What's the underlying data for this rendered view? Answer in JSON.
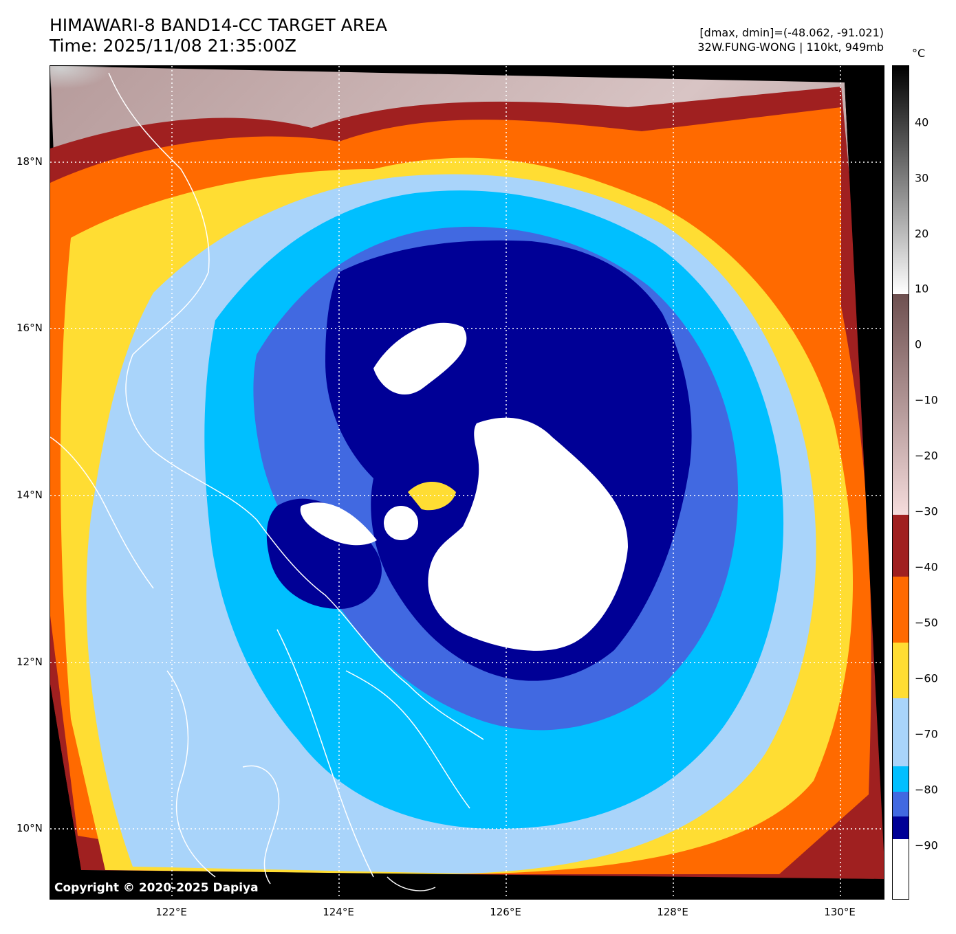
{
  "header": {
    "title": "HIMAWARI-8 BAND14-CC TARGET AREA",
    "time": "Time: 2025/11/08 21:35:00Z",
    "range": "[dmax, dmin]=(-48.062, -91.021)",
    "storm": "32W.FUNG-WONG | 110kt, 949mb"
  },
  "map": {
    "copyright": "Copyright © 2020-2025 Dapiya",
    "lon_ticks": [
      "122°E",
      "124°E",
      "126°E",
      "128°E",
      "130°E"
    ],
    "lat_ticks": [
      "18°N",
      "16°N",
      "14°N",
      "12°N",
      "10°N"
    ],
    "gridlines": "dotted white"
  },
  "colorbar": {
    "unit": "°C",
    "labels": [
      "40",
      "30",
      "20",
      "10",
      "0",
      "−10",
      "−20",
      "−30",
      "−40",
      "−50",
      "−60",
      "−70",
      "−80",
      "−90"
    ],
    "bands": [
      {
        "range": "-98 to -86",
        "color": "#ffffff"
      },
      {
        "range": "-86 to -82",
        "color": "#000096"
      },
      {
        "range": "-82 to -78",
        "color": "#4169e1"
      },
      {
        "range": "-78 to -72",
        "color": "#00bfff"
      },
      {
        "range": "-72 to -64",
        "color": "#a9d4fa"
      },
      {
        "range": "-64 to -52",
        "color": "#ffdd33"
      },
      {
        "range": "-52 to -41",
        "color": "#ff6a00"
      },
      {
        "range": "-41 to -33",
        "color": "#a02020"
      },
      {
        "range": "-33 to 10",
        "color": "#f5dcdc to #6e5050"
      },
      {
        "range": "10 to 50",
        "color": "#ffffff to #000000"
      }
    ]
  }
}
